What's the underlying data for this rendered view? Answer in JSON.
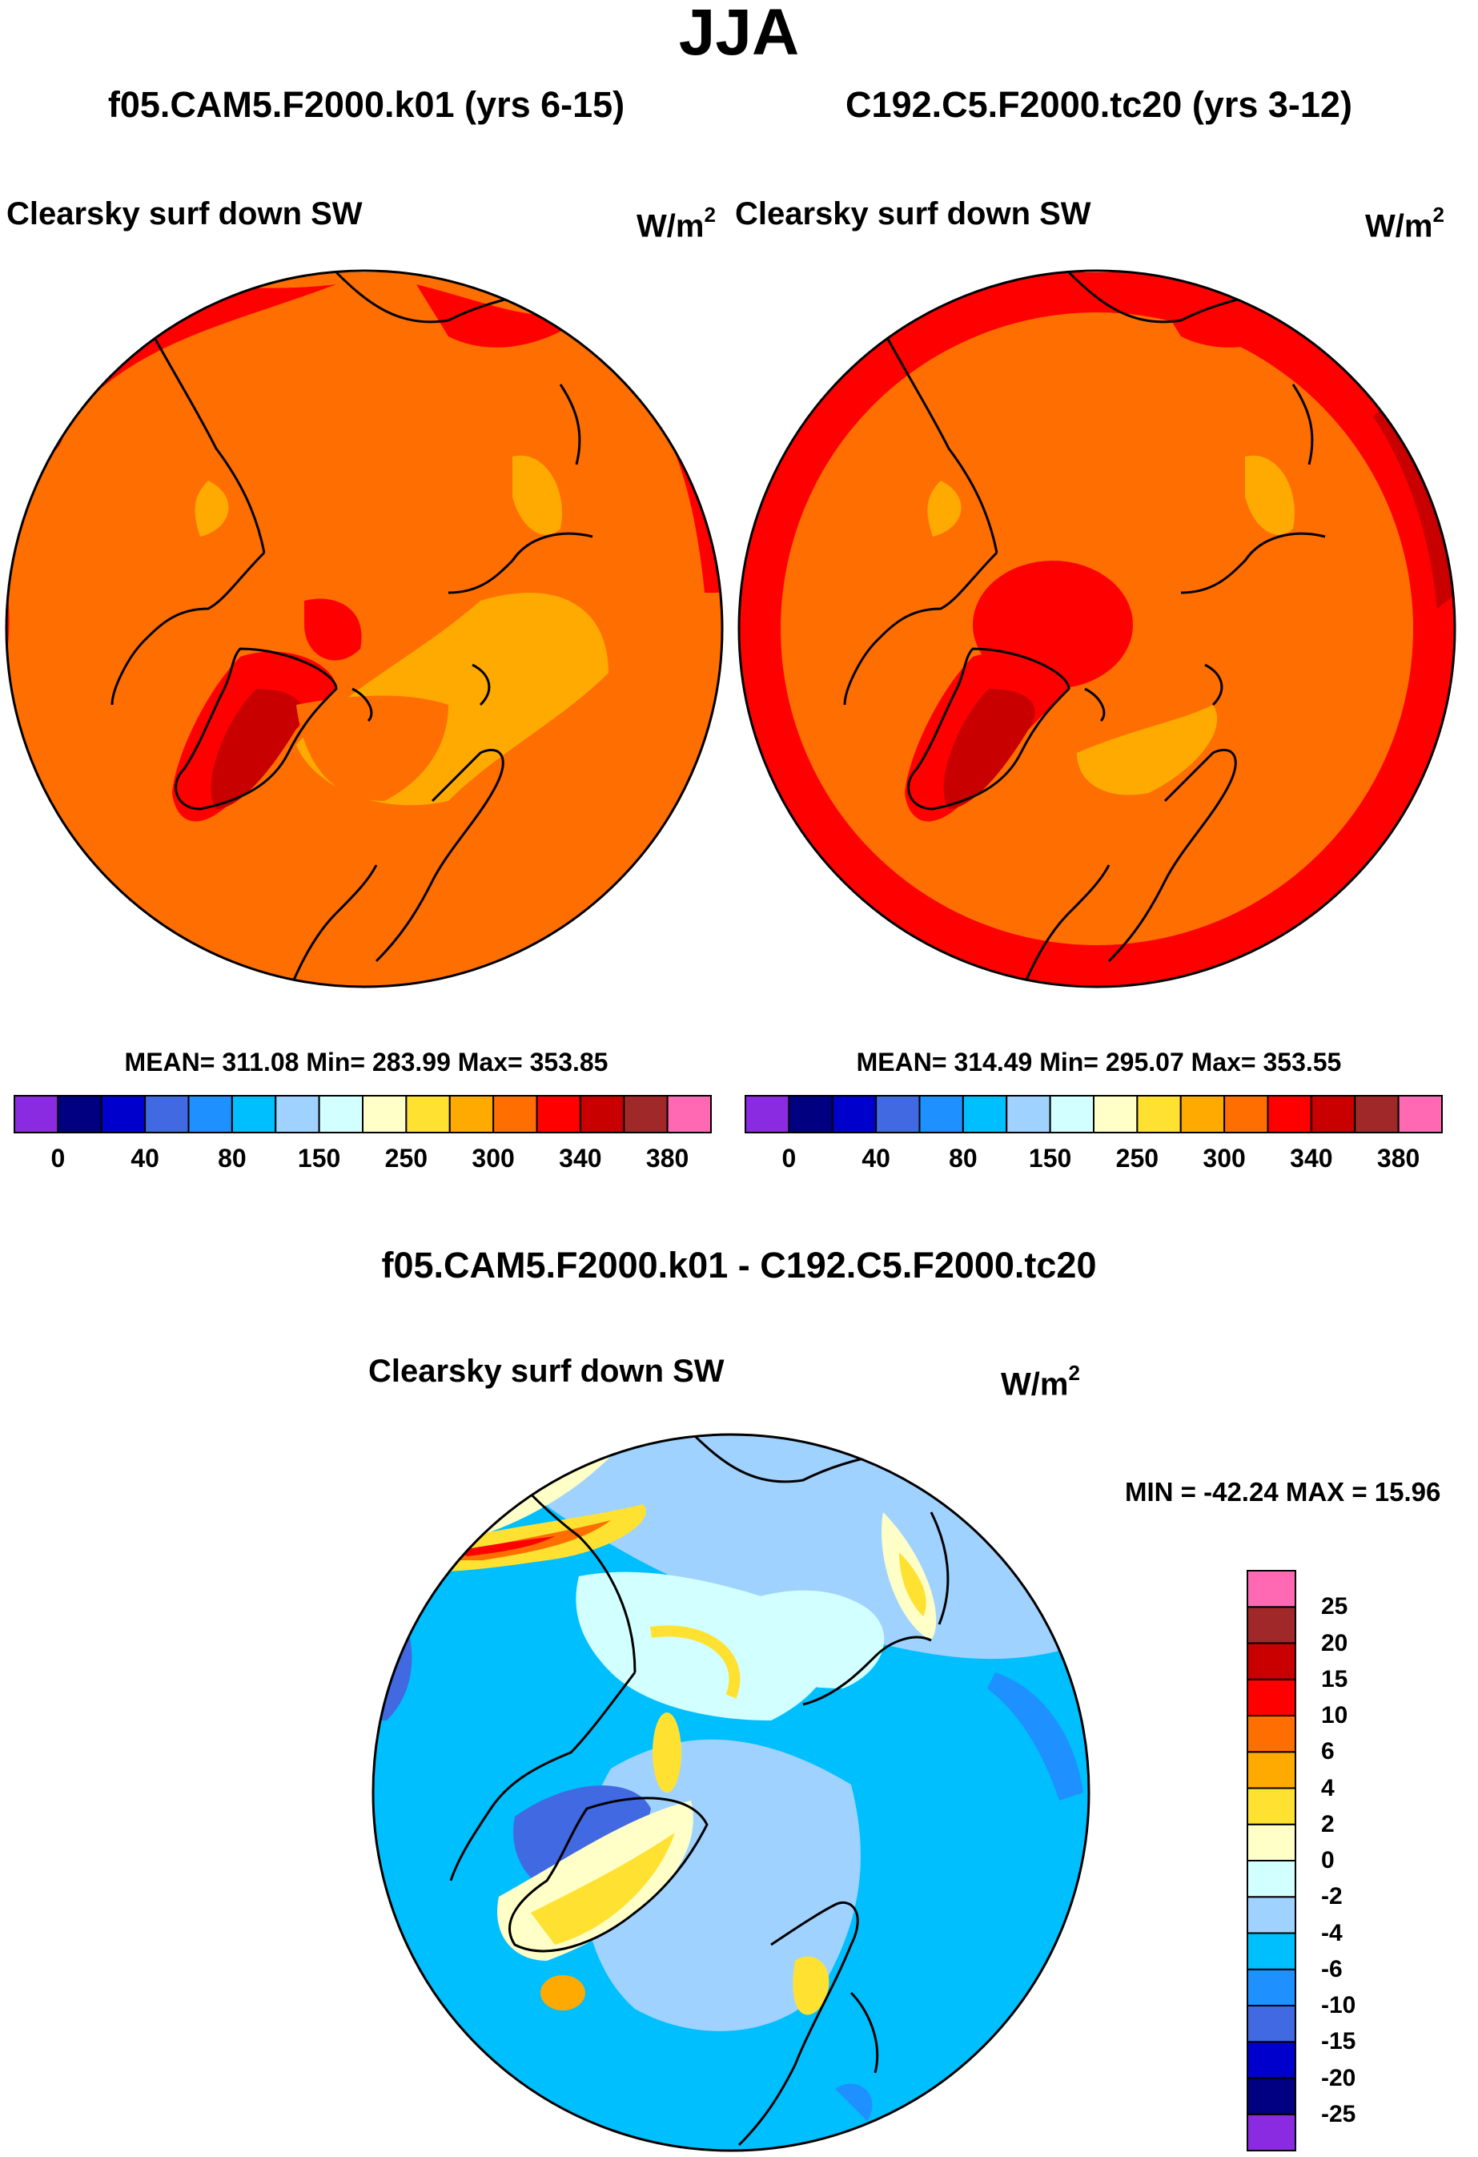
{
  "season": "JJA",
  "panel_left": {
    "case_title": "f05.CAM5.F2000.k01 (yrs 6-15)",
    "variable": "Clearsky surf down SW",
    "units_base": "W/m",
    "units_exp": "2",
    "stats": "MEAN= 311.08  Min= 283.99  Max= 353.85"
  },
  "panel_right": {
    "case_title": "C192.C5.F2000.tc20 (yrs 3-12)",
    "variable": "Clearsky surf down SW",
    "units_base": "W/m",
    "units_exp": "2",
    "stats": "MEAN= 314.49  Min= 295.07  Max= 353.55"
  },
  "panel_diff": {
    "diff_title": "f05.CAM5.F2000.k01 - C192.C5.F2000.tc20",
    "variable": "Clearsky surf down SW",
    "units_base": "W/m",
    "units_exp": "2",
    "stats": "MIN = -42.24 MAX =  15.96"
  },
  "colorbar_abs": {
    "colors": [
      "#8a2be2",
      "#000080",
      "#0000cd",
      "#4169e1",
      "#1e90ff",
      "#00bfff",
      "#a0d2ff",
      "#d2ffff",
      "#ffffc8",
      "#ffe132",
      "#ffaa00",
      "#ff6e00",
      "#ff0000",
      "#c80000",
      "#a02828",
      "#ff69b4"
    ],
    "tick_labels": [
      "0",
      "40",
      "80",
      "150",
      "250",
      "300",
      "340",
      "380"
    ]
  },
  "colorbar_diff": {
    "colors": [
      "#8a2be2",
      "#000080",
      "#0000cd",
      "#4169e1",
      "#1e90ff",
      "#00bfff",
      "#a0d2ff",
      "#d2ffff",
      "#ffffc8",
      "#ffe132",
      "#ffaa00",
      "#ff6e00",
      "#ff0000",
      "#c80000",
      "#a02828",
      "#ff69b4"
    ],
    "tick_labels": [
      "-25",
      "-20",
      "-15",
      "-10",
      "-6",
      "-4",
      "-2",
      "0",
      "2",
      "4",
      "6",
      "10",
      "15",
      "20",
      "25"
    ]
  }
}
